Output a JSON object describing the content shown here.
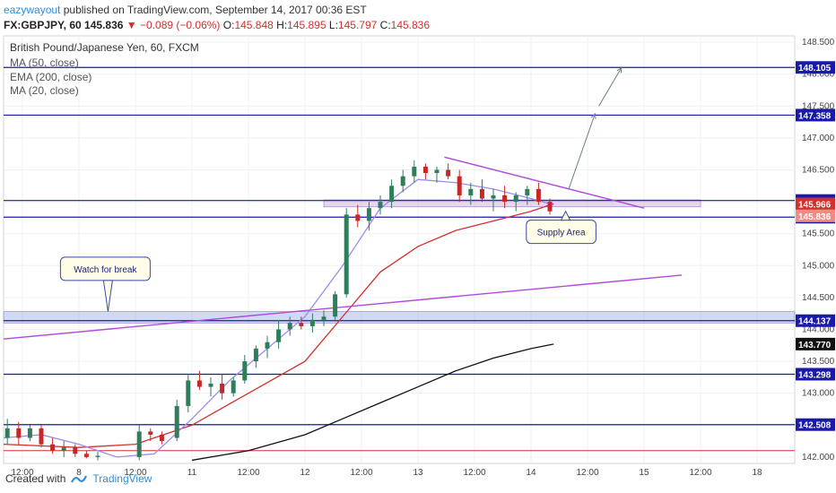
{
  "header": {
    "author": "eazywayout",
    "published": "published on TradingView.com, September 14, 2017 00:36 EST",
    "symbol": "FX:GBPJPY, 60",
    "last": "145.836",
    "change": "−0.089 (−0.06%)",
    "open_label": "O:",
    "open": "145.848",
    "high_label": "H:",
    "high": "145.895",
    "low_label": "L:",
    "low": "145.797",
    "close_label": "C:",
    "close": "145.836"
  },
  "legend": {
    "title": "British Pound/Japanese Yen, 60, FXCM",
    "items": [
      "MA (50, close)",
      "EMA (200, close)",
      "MA (20, close)"
    ]
  },
  "footer": {
    "created": "Created with",
    "brand": "TradingView"
  },
  "colors": {
    "ma50": "#d32f2f",
    "ema200": "#111111",
    "ma20": "#9c8cf0",
    "support": "#1a1aa8",
    "trend": "#b04ad8",
    "up": "#2e7d5b",
    "down": "#c62828"
  },
  "chart_data": {
    "type": "line",
    "title": "British Pound/Japanese Yen, 60, FXCM",
    "ylim": [
      141.9,
      148.6
    ],
    "y_ticks": [
      142.0,
      142.5,
      143.0,
      143.5,
      144.0,
      144.5,
      145.0,
      145.5,
      146.0,
      146.5,
      147.0,
      147.5,
      148.0,
      148.5
    ],
    "x_ticks": [
      {
        "x": 0.5,
        "label": "12:00"
      },
      {
        "x": 2,
        "label": "8"
      },
      {
        "x": 3.5,
        "label": "12:00"
      },
      {
        "x": 5,
        "label": "11"
      },
      {
        "x": 6.5,
        "label": "12:00"
      },
      {
        "x": 8,
        "label": "12"
      },
      {
        "x": 9.5,
        "label": "12:00"
      },
      {
        "x": 11,
        "label": "13"
      },
      {
        "x": 12.5,
        "label": "12:00"
      },
      {
        "x": 14,
        "label": "14"
      },
      {
        "x": 15.5,
        "label": "12:00"
      },
      {
        "x": 17,
        "label": "15"
      },
      {
        "x": 18.5,
        "label": "12:00"
      },
      {
        "x": 20,
        "label": "18"
      }
    ],
    "xlim": [
      0,
      21
    ],
    "horizontal_levels": [
      {
        "value": 148.105,
        "label": "148.105"
      },
      {
        "value": 147.358,
        "label": "147.358"
      },
      {
        "value": 146.02,
        "label": "146.020"
      },
      {
        "value": 145.759,
        "label": "145.759"
      },
      {
        "value": 144.137,
        "label": "144.137"
      },
      {
        "value": 143.298,
        "label": "143.298"
      },
      {
        "value": 142.508,
        "label": "142.508"
      }
    ],
    "price_tags": [
      {
        "value": 145.966,
        "label": "145.966"
      },
      {
        "value": 145.836,
        "label": "145.836"
      },
      {
        "value": 143.77,
        "label": "143.770"
      }
    ],
    "candles": [
      [
        0.1,
        142.3,
        142.6,
        142.2,
        142.45
      ],
      [
        0.4,
        142.45,
        142.55,
        142.2,
        142.3
      ],
      [
        0.7,
        142.3,
        142.5,
        142.25,
        142.45
      ],
      [
        1.0,
        142.45,
        142.5,
        142.15,
        142.2
      ],
      [
        1.3,
        142.2,
        142.3,
        142.05,
        142.1
      ],
      [
        1.6,
        142.1,
        142.25,
        142.0,
        142.15
      ],
      [
        1.9,
        142.15,
        142.2,
        142.0,
        142.05
      ],
      [
        2.2,
        142.05,
        142.1,
        141.98,
        142.0
      ],
      [
        2.5,
        142.0,
        142.08,
        141.95,
        142.02
      ],
      [
        3.6,
        142.0,
        142.5,
        141.95,
        142.4
      ],
      [
        3.9,
        142.4,
        142.45,
        142.25,
        142.35
      ],
      [
        4.2,
        142.35,
        142.4,
        142.2,
        142.25
      ],
      [
        4.6,
        142.3,
        142.9,
        142.25,
        142.8
      ],
      [
        4.9,
        142.8,
        143.3,
        142.7,
        143.2
      ],
      [
        5.2,
        143.2,
        143.35,
        143.05,
        143.1
      ],
      [
        5.5,
        143.1,
        143.25,
        142.95,
        143.15
      ],
      [
        5.8,
        143.15,
        143.3,
        142.9,
        143.0
      ],
      [
        6.1,
        143.0,
        143.25,
        142.95,
        143.2
      ],
      [
        6.4,
        143.2,
        143.6,
        143.15,
        143.5
      ],
      [
        6.7,
        143.5,
        143.75,
        143.4,
        143.7
      ],
      [
        7.0,
        143.7,
        143.9,
        143.55,
        143.8
      ],
      [
        7.3,
        143.8,
        144.15,
        143.7,
        144.0
      ],
      [
        7.6,
        144.0,
        144.2,
        143.9,
        144.1
      ],
      [
        7.9,
        144.1,
        144.2,
        144.0,
        144.05
      ],
      [
        8.2,
        144.05,
        144.25,
        143.95,
        144.15
      ],
      [
        8.5,
        144.15,
        144.3,
        144.05,
        144.2
      ],
      [
        8.8,
        144.2,
        144.6,
        144.15,
        144.55
      ],
      [
        9.1,
        144.55,
        145.9,
        144.5,
        145.8
      ],
      [
        9.4,
        145.8,
        145.95,
        145.6,
        145.7
      ],
      [
        9.7,
        145.7,
        146.0,
        145.55,
        145.9
      ],
      [
        10.0,
        145.9,
        146.1,
        145.8,
        146.0
      ],
      [
        10.3,
        146.0,
        146.35,
        145.9,
        146.25
      ],
      [
        10.6,
        146.25,
        146.5,
        146.15,
        146.4
      ],
      [
        10.9,
        146.4,
        146.65,
        146.3,
        146.55
      ],
      [
        11.2,
        146.55,
        146.6,
        146.35,
        146.45
      ],
      [
        11.5,
        146.45,
        146.55,
        146.3,
        146.5
      ],
      [
        11.8,
        146.5,
        146.6,
        146.35,
        146.4
      ],
      [
        12.1,
        146.4,
        146.5,
        146.0,
        146.1
      ],
      [
        12.4,
        146.1,
        146.3,
        145.95,
        146.2
      ],
      [
        12.7,
        146.2,
        146.35,
        146.0,
        146.05
      ],
      [
        13.0,
        146.05,
        146.2,
        145.85,
        146.1
      ],
      [
        13.3,
        146.1,
        146.25,
        145.9,
        146.0
      ],
      [
        13.6,
        146.0,
        146.15,
        145.85,
        146.1
      ],
      [
        13.9,
        146.1,
        146.25,
        145.95,
        146.2
      ],
      [
        14.2,
        146.2,
        146.3,
        145.95,
        146.0
      ],
      [
        14.5,
        146.0,
        146.05,
        145.8,
        145.85
      ]
    ],
    "series": [
      {
        "name": "MA (50, close)",
        "x": [
          0,
          2,
          3.5,
          5,
          6.5,
          8,
          9,
          10,
          11,
          12,
          13,
          14,
          14.6
        ],
        "y": [
          142.2,
          142.15,
          142.2,
          142.5,
          143.0,
          143.5,
          144.2,
          144.9,
          145.3,
          145.55,
          145.7,
          145.85,
          145.97
        ]
      },
      {
        "name": "EMA (200, close)",
        "x": [
          5,
          6.5,
          8,
          9,
          10,
          11,
          12,
          13,
          14,
          14.6
        ],
        "y": [
          141.95,
          142.1,
          142.35,
          142.6,
          142.85,
          143.1,
          143.35,
          143.55,
          143.7,
          143.77
        ]
      },
      {
        "name": "MA (20, close)",
        "x": [
          0,
          1,
          2,
          3,
          4,
          5,
          6,
          7,
          8,
          9,
          10,
          11,
          12,
          13,
          14,
          14.6
        ],
        "y": [
          142.3,
          142.35,
          142.2,
          142.0,
          142.05,
          142.6,
          143.2,
          143.7,
          144.2,
          145.0,
          145.9,
          146.35,
          146.3,
          146.2,
          146.05,
          145.95
        ]
      }
    ],
    "trendlines": [
      {
        "name": "descending",
        "x": [
          11.7,
          17
        ],
        "y": [
          146.7,
          145.9
        ]
      },
      {
        "name": "ascending",
        "x": [
          0,
          18
        ],
        "y": [
          143.85,
          144.85
        ]
      }
    ],
    "zones": [
      {
        "name": "supply",
        "x": [
          8.5,
          18.5
        ],
        "y": [
          145.92,
          146.03
        ]
      },
      {
        "name": "break",
        "x": [
          0,
          21
        ],
        "y": [
          144.1,
          144.28
        ]
      }
    ],
    "arrows": [
      {
        "x": [
          15.0,
          15.7
        ],
        "y": [
          146.2,
          147.38
        ]
      },
      {
        "x": [
          15.8,
          16.4
        ],
        "y": [
          147.5,
          148.1
        ]
      }
    ],
    "annotations": [
      {
        "text": "Watch for break",
        "x": 2.7,
        "y": 144.95
      },
      {
        "text": "Supply Area",
        "x": 14.8,
        "y": 145.53
      }
    ]
  }
}
